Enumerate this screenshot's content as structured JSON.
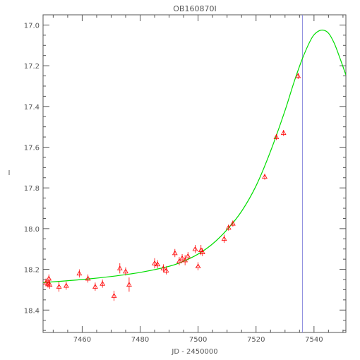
{
  "chart_data": {
    "type": "scatter",
    "title": "OB160870I",
    "xlabel": "JD - 2450000",
    "ylabel": "I",
    "xlim": [
      7446.5,
      7551
    ],
    "ylim": [
      18.51,
      16.95
    ],
    "y_inverted": true,
    "x_ticks": [
      7460,
      7480,
      7500,
      7520,
      7540
    ],
    "y_ticks": [
      17.0,
      17.2,
      17.4,
      17.6,
      17.8,
      18.0,
      18.2,
      18.4
    ],
    "y_tick_labels": [
      "17.0",
      "17.2",
      "17.4",
      "17.6",
      "17.8",
      "18.0",
      "18.2",
      "18.4"
    ],
    "grid": false,
    "vertical_marker_x": 7536,
    "colors": {
      "points": "#ff0000",
      "model_curve": "#00dd00",
      "marker_line": "#8888dd",
      "axes": "#555555"
    },
    "model_curve": {
      "name": "",
      "x": [
        7446.5,
        7460,
        7470,
        7480,
        7490,
        7495,
        7500,
        7505,
        7510,
        7515,
        7520,
        7525,
        7530,
        7533,
        7536,
        7539,
        7541,
        7543,
        7545,
        7547,
        7549,
        7551
      ],
      "y": [
        18.265,
        18.25,
        18.235,
        18.215,
        18.185,
        18.16,
        18.125,
        18.075,
        18.005,
        17.915,
        17.79,
        17.62,
        17.42,
        17.285,
        17.165,
        17.07,
        17.035,
        17.025,
        17.04,
        17.09,
        17.165,
        17.245
      ]
    },
    "series": [
      {
        "name": "",
        "x": [
          7447.5,
          7448.2,
          7448.5,
          7448.8,
          7452,
          7454.5,
          7459,
          7462,
          7464.5,
          7467,
          7471,
          7473,
          7475,
          7476.2,
          7485,
          7486,
          7488,
          7489,
          7492,
          7493.5,
          7494.5,
          7495.5,
          7496.5,
          7499,
          7500,
          7501,
          7501.5,
          7509,
          7510.5,
          7512,
          7523,
          7527,
          7529.5,
          7534.5
        ],
        "y": [
          18.265,
          18.27,
          18.245,
          18.275,
          18.285,
          18.28,
          18.22,
          18.245,
          18.285,
          18.27,
          18.33,
          18.195,
          18.21,
          18.275,
          18.17,
          18.175,
          18.195,
          18.205,
          18.12,
          18.16,
          18.145,
          18.155,
          18.135,
          18.1,
          18.185,
          18.105,
          18.115,
          18.05,
          17.995,
          17.975,
          17.745,
          17.55,
          17.53,
          17.25
        ],
        "err": [
          0.02,
          0.02,
          0.02,
          0.02,
          0.025,
          0.02,
          0.02,
          0.02,
          0.02,
          0.02,
          0.025,
          0.025,
          0.02,
          0.035,
          0.025,
          0.02,
          0.02,
          0.02,
          0.02,
          0.02,
          0.02,
          0.025,
          0.02,
          0.02,
          0.02,
          0.025,
          0.02,
          0.02,
          0.015,
          0.015,
          0.015,
          0.015,
          0.015,
          0.015
        ]
      }
    ]
  }
}
